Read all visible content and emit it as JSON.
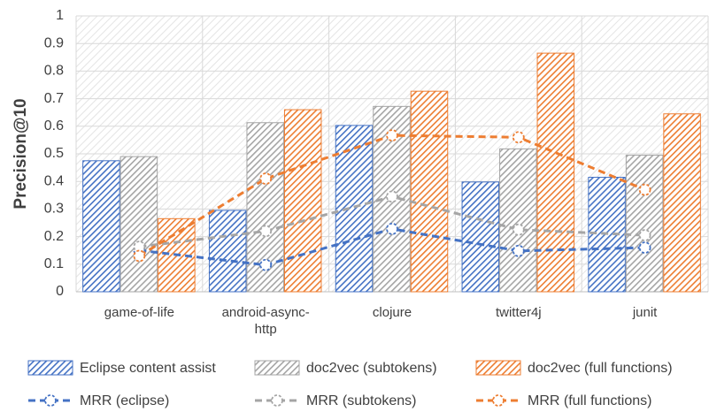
{
  "chart_data": {
    "type": "bar",
    "ylabel": "Precision@10",
    "categories": [
      "game-of-life",
      "android-async-http",
      "clojure",
      "twitter4j",
      "junit"
    ],
    "ylim": [
      0,
      1
    ],
    "yticks": [
      0,
      0.1,
      0.2,
      0.3,
      0.4,
      0.5,
      0.6,
      0.7,
      0.8,
      0.9,
      1
    ],
    "grid": true,
    "legend": "bottom",
    "series": [
      {
        "name": "Eclipse content assist",
        "type": "bar",
        "color": "#4472c4",
        "values": [
          0.475,
          0.295,
          0.603,
          0.398,
          0.415
        ]
      },
      {
        "name": "doc2vec (subtokens)",
        "type": "bar",
        "color": "#a5a5a5",
        "values": [
          0.49,
          0.613,
          0.672,
          0.518,
          0.495
        ]
      },
      {
        "name": "doc2vec (full functions)",
        "type": "bar",
        "color": "#ed7d31",
        "values": [
          0.265,
          0.66,
          0.727,
          0.865,
          0.645
        ]
      },
      {
        "name": "MRR (eclipse)",
        "type": "line",
        "color": "#4472c4",
        "values": [
          0.15,
          0.097,
          0.228,
          0.148,
          0.16
        ]
      },
      {
        "name": "MRR (subtokens)",
        "type": "line",
        "color": "#a5a5a5",
        "values": [
          0.163,
          0.22,
          0.345,
          0.225,
          0.205
        ]
      },
      {
        "name": "MRR (full functions)",
        "type": "line",
        "color": "#ed7d31",
        "values": [
          0.13,
          0.41,
          0.567,
          0.56,
          0.37
        ]
      }
    ]
  }
}
